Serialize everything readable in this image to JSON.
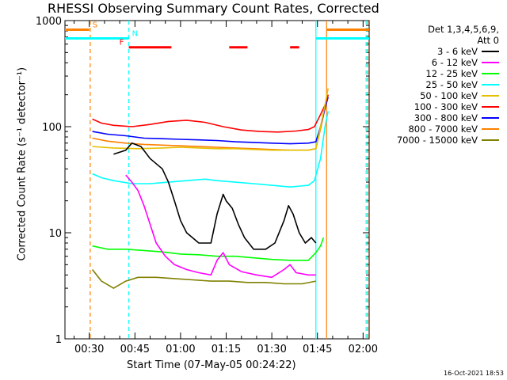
{
  "chart_data": {
    "type": "line",
    "title": "RHESSI Observing Summary Count Rates, Corrected",
    "xlabel": "Start Time (07-May-05 00:24:22)",
    "ylabel": "Corrected Count Rate (s⁻¹ detector⁻¹)",
    "yscale": "log",
    "ylim": [
      1,
      1000
    ],
    "xlim_minutes": [
      22,
      122
    ],
    "x_ticks": [
      {
        "label": "00:30",
        "m": 30
      },
      {
        "label": "00:45",
        "m": 45
      },
      {
        "label": "01:00",
        "m": 60
      },
      {
        "label": "01:15",
        "m": 75
      },
      {
        "label": "01:30",
        "m": 90
      },
      {
        "label": "01:45",
        "m": 105
      },
      {
        "label": "02:00",
        "m": 120
      }
    ],
    "y_ticks": [
      {
        "label": "1",
        "v": 1
      },
      {
        "label": "10",
        "v": 10
      },
      {
        "label": "100",
        "v": 100
      },
      {
        "label": "1000",
        "v": 1000
      }
    ],
    "legend_header": [
      "Det 1,3,4,5,6,9,",
      "Att 0"
    ],
    "series": [
      {
        "name": "3 - 6 keV",
        "color": "#000000",
        "points": [
          [
            38,
            55
          ],
          [
            42,
            60
          ],
          [
            44,
            70
          ],
          [
            47,
            65
          ],
          [
            50,
            50
          ],
          [
            54,
            40
          ],
          [
            56,
            30
          ],
          [
            58,
            20
          ],
          [
            60,
            13
          ],
          [
            62,
            10
          ],
          [
            66,
            8
          ],
          [
            70,
            8
          ],
          [
            72,
            15
          ],
          [
            74,
            23
          ],
          [
            75,
            20
          ],
          [
            77,
            17
          ],
          [
            79,
            12
          ],
          [
            81,
            9
          ],
          [
            84,
            7
          ],
          [
            88,
            7
          ],
          [
            91,
            8
          ],
          [
            94,
            13
          ],
          [
            95.5,
            18
          ],
          [
            97,
            15
          ],
          [
            99,
            10
          ],
          [
            101,
            8
          ],
          [
            103,
            9
          ],
          [
            104.5,
            8
          ]
        ]
      },
      {
        "name": "6 - 12 keV",
        "color": "#ff00ff",
        "points": [
          [
            42,
            35
          ],
          [
            44,
            30
          ],
          [
            46,
            25
          ],
          [
            48,
            18
          ],
          [
            50,
            12
          ],
          [
            52,
            8
          ],
          [
            55,
            6
          ],
          [
            58,
            5
          ],
          [
            62,
            4.5
          ],
          [
            66,
            4.2
          ],
          [
            70,
            4
          ],
          [
            72,
            5.5
          ],
          [
            74,
            6.5
          ],
          [
            76,
            5
          ],
          [
            80,
            4.3
          ],
          [
            85,
            4
          ],
          [
            90,
            3.8
          ],
          [
            94,
            4.5
          ],
          [
            96,
            5
          ],
          [
            98,
            4.2
          ],
          [
            102,
            4
          ],
          [
            104.5,
            4
          ]
        ]
      },
      {
        "name": "12 - 25 keV",
        "color": "#00ff00",
        "points": [
          [
            31,
            7.5
          ],
          [
            36,
            7
          ],
          [
            42,
            7
          ],
          [
            48,
            6.8
          ],
          [
            54,
            6.6
          ],
          [
            60,
            6.3
          ],
          [
            66,
            6.2
          ],
          [
            72,
            6
          ],
          [
            78,
            6
          ],
          [
            84,
            5.8
          ],
          [
            90,
            5.6
          ],
          [
            96,
            5.5
          ],
          [
            102,
            5.5
          ],
          [
            104.5,
            6.5
          ],
          [
            106,
            7.5
          ],
          [
            107,
            9
          ]
        ]
      },
      {
        "name": "25 - 50 keV",
        "color": "#00ffff",
        "points": [
          [
            31,
            36
          ],
          [
            34,
            33
          ],
          [
            38,
            31
          ],
          [
            44,
            29
          ],
          [
            50,
            29
          ],
          [
            56,
            30
          ],
          [
            62,
            31
          ],
          [
            68,
            32
          ],
          [
            72,
            31
          ],
          [
            78,
            30
          ],
          [
            84,
            29
          ],
          [
            90,
            28
          ],
          [
            96,
            27
          ],
          [
            102,
            28
          ],
          [
            104,
            31
          ],
          [
            106,
            50
          ],
          [
            107.5,
            100
          ],
          [
            108.5,
            140
          ]
        ]
      },
      {
        "name": "50 - 100 keV",
        "color": "#e6c000",
        "points": [
          [
            31,
            65
          ],
          [
            38,
            63
          ],
          [
            46,
            62
          ],
          [
            54,
            63
          ],
          [
            60,
            64
          ],
          [
            66,
            63
          ],
          [
            72,
            62
          ],
          [
            78,
            62
          ],
          [
            84,
            61
          ],
          [
            90,
            60
          ],
          [
            96,
            60
          ],
          [
            102,
            60
          ],
          [
            104.5,
            62
          ],
          [
            106,
            100
          ],
          [
            107.5,
            160
          ],
          [
            108.5,
            230
          ]
        ]
      },
      {
        "name": "100 - 300 keV",
        "color": "#ff0000",
        "points": [
          [
            31,
            118
          ],
          [
            34,
            108
          ],
          [
            38,
            103
          ],
          [
            44,
            100
          ],
          [
            50,
            105
          ],
          [
            56,
            112
          ],
          [
            62,
            115
          ],
          [
            68,
            110
          ],
          [
            74,
            100
          ],
          [
            80,
            93
          ],
          [
            86,
            90
          ],
          [
            92,
            89
          ],
          [
            98,
            91
          ],
          [
            102,
            94
          ],
          [
            104,
            100
          ],
          [
            106,
            130
          ],
          [
            107.5,
            160
          ],
          [
            108.5,
            200
          ]
        ]
      },
      {
        "name": "300 - 800 keV",
        "color": "#0000ff",
        "points": [
          [
            31,
            90
          ],
          [
            36,
            85
          ],
          [
            42,
            82
          ],
          [
            48,
            78
          ],
          [
            54,
            77
          ],
          [
            60,
            76
          ],
          [
            66,
            75
          ],
          [
            72,
            74
          ],
          [
            78,
            72
          ],
          [
            84,
            71
          ],
          [
            90,
            70
          ],
          [
            96,
            69
          ],
          [
            102,
            70
          ],
          [
            104.5,
            72
          ],
          [
            106,
            100
          ],
          [
            107.5,
            150
          ],
          [
            108.5,
            190
          ]
        ]
      },
      {
        "name": "800 - 7000 keV",
        "color": "#ff8000",
        "points": [
          [
            31,
            78
          ],
          [
            36,
            73
          ],
          [
            42,
            70
          ],
          [
            48,
            68
          ],
          [
            54,
            67
          ],
          [
            60,
            66
          ],
          [
            66,
            65
          ],
          [
            72,
            64
          ],
          [
            78,
            63
          ],
          [
            84,
            62
          ],
          [
            90,
            61
          ],
          [
            96,
            60
          ],
          [
            102,
            60
          ],
          [
            104.5,
            62
          ],
          [
            106,
            95
          ],
          [
            107.5,
            150
          ],
          [
            108.5,
            200
          ]
        ]
      },
      {
        "name": "7000 - 15000 keV",
        "color": "#808000",
        "points": [
          [
            31,
            4.5
          ],
          [
            34,
            3.5
          ],
          [
            38,
            3
          ],
          [
            42,
            3.5
          ],
          [
            46,
            3.8
          ],
          [
            52,
            3.8
          ],
          [
            58,
            3.7
          ],
          [
            64,
            3.6
          ],
          [
            70,
            3.5
          ],
          [
            76,
            3.5
          ],
          [
            82,
            3.4
          ],
          [
            88,
            3.4
          ],
          [
            94,
            3.3
          ],
          [
            100,
            3.3
          ],
          [
            104.5,
            3.5
          ]
        ]
      }
    ],
    "flag_bars": [
      {
        "label": "S",
        "color": "#ff8000",
        "level": 820,
        "segments": [
          [
            22,
            30
          ]
        ]
      },
      {
        "label": "",
        "color": "#ff8000",
        "level": 820,
        "segments": [
          [
            108,
            122
          ]
        ]
      },
      {
        "label": "N",
        "color": "#00ffff",
        "level": 680,
        "segments": [
          [
            22,
            43
          ]
        ]
      },
      {
        "label": "",
        "color": "#00ffff",
        "level": 680,
        "segments": [
          [
            104.5,
            122
          ]
        ]
      },
      {
        "label": "F",
        "color": "#ff0000",
        "level": 560,
        "segments": [
          [
            43,
            57
          ],
          [
            76,
            82
          ],
          [
            96,
            99
          ]
        ]
      }
    ],
    "vlines": [
      {
        "m": 30.3,
        "color": "#ff8000",
        "dash": true
      },
      {
        "m": 43,
        "color": "#00ffff",
        "dash": true
      },
      {
        "m": 104.5,
        "color": "#00ffff",
        "dash": false
      },
      {
        "m": 108,
        "color": "#ff8000",
        "dash": false
      },
      {
        "m": 121,
        "color": "#00ffff",
        "dash": true
      },
      {
        "m": 121.5,
        "color": "#ff8000",
        "dash": true
      }
    ],
    "timestamp": "16-Oct-2021 18:53"
  }
}
